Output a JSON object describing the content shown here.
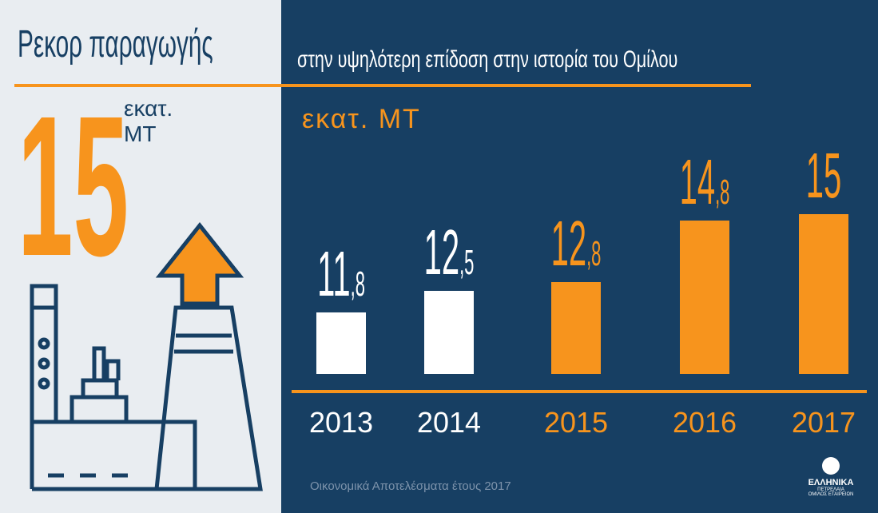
{
  "title": "Ρεκορ παραγωγής",
  "subtitle": "στην υψηλότερη επίδοση στην ιστορία του Ομίλου",
  "highlight": {
    "value": "15",
    "unit_line1": "εκατ.",
    "unit_line2": "ΜΤ"
  },
  "footer": "Οικονομικά Αποτελέσματα έτους 2017",
  "logo": {
    "name": "ΕΛΛΗΝΙΚΑ",
    "name2": "ΠΕΤΡΕΛΑΙΑ",
    "tag": "ΟΜΙΛΟΣ ΕΤΑΙΡΕΙΩΝ"
  },
  "colors": {
    "orange": "#f7941d",
    "navy": "#173f63",
    "white": "#ffffff"
  },
  "chart_data": {
    "type": "bar",
    "title": "Ρεκορ παραγωγής",
    "ylabel": "εκατ. ΜΤ",
    "categories": [
      "2013",
      "2014",
      "2015",
      "2016",
      "2017"
    ],
    "values": [
      11.8,
      12.5,
      12.8,
      14.8,
      15
    ],
    "labels": [
      [
        "11",
        ",8"
      ],
      [
        "12",
        ",5"
      ],
      [
        "12",
        ",8"
      ],
      [
        "14",
        ",8"
      ],
      [
        "15",
        ""
      ]
    ],
    "bar_colors": [
      "#ffffff",
      "#ffffff",
      "#f7941d",
      "#f7941d",
      "#f7941d"
    ],
    "ylim": [
      9.8,
      15
    ]
  }
}
